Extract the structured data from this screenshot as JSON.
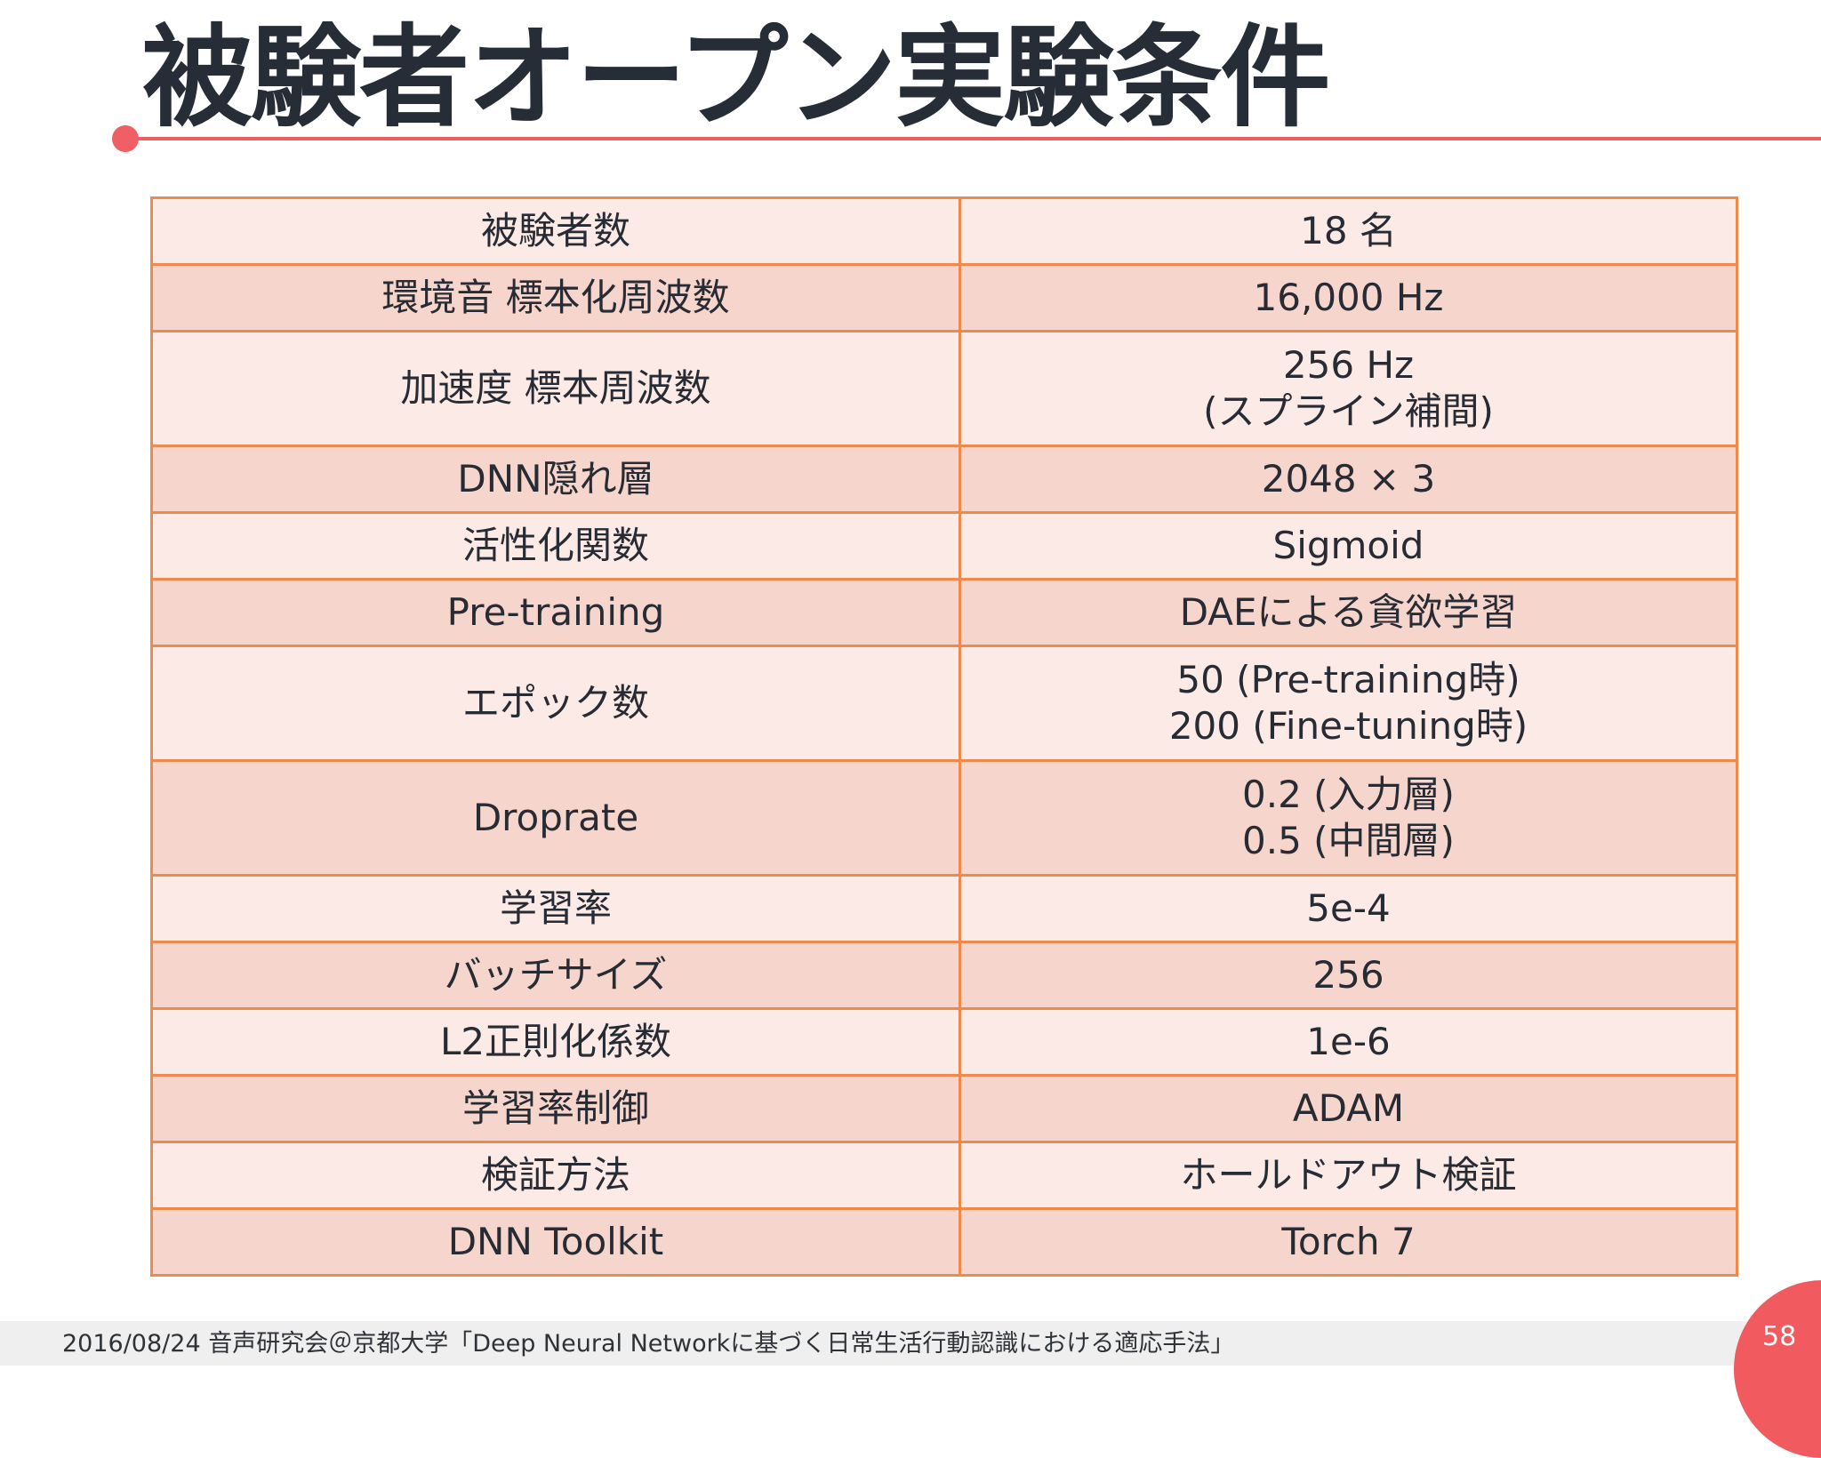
{
  "slide": {
    "title": "被験者オープン実験条件",
    "page_number": "58",
    "footer": "2016/08/24  音声研究会＠京都大学「Deep Neural Networkに基づく日常生活行動認識における適応手法」"
  },
  "table": {
    "rows": [
      {
        "label": "被験者数",
        "value": [
          "18 名"
        ]
      },
      {
        "label": "環境音 標本化周波数",
        "value": [
          "16,000 Hz"
        ]
      },
      {
        "label": "加速度 標本周波数",
        "value": [
          "256 Hz",
          "(スプライン補間)"
        ]
      },
      {
        "label": "DNN隠れ層",
        "value": [
          "2048 × 3"
        ]
      },
      {
        "label": "活性化関数",
        "value": [
          "Sigmoid"
        ]
      },
      {
        "label": "Pre-training",
        "value": [
          "DAEによる貪欲学習"
        ]
      },
      {
        "label": "エポック数",
        "value": [
          "50 (Pre-training時)",
          "200 (Fine-tuning時)"
        ]
      },
      {
        "label": "Droprate",
        "value": [
          "0.2 (入力層)",
          "0.5 (中間層)"
        ]
      },
      {
        "label": "学習率",
        "value": [
          "5e-4"
        ]
      },
      {
        "label": "バッチサイズ",
        "value": [
          "256"
        ]
      },
      {
        "label": "L2正則化係数",
        "value": [
          "1e-6"
        ]
      },
      {
        "label": "学習率制御",
        "value": [
          "ADAM"
        ]
      },
      {
        "label": "検証方法",
        "value": [
          "ホールドアウト検証"
        ]
      },
      {
        "label": "DNN Toolkit",
        "value": [
          "Torch 7"
        ]
      }
    ]
  },
  "colors": {
    "accent": "#ef5f63",
    "table_border": "#ee8a4c",
    "row_light": "#fceae6",
    "row_dark": "#f6d5cc"
  }
}
